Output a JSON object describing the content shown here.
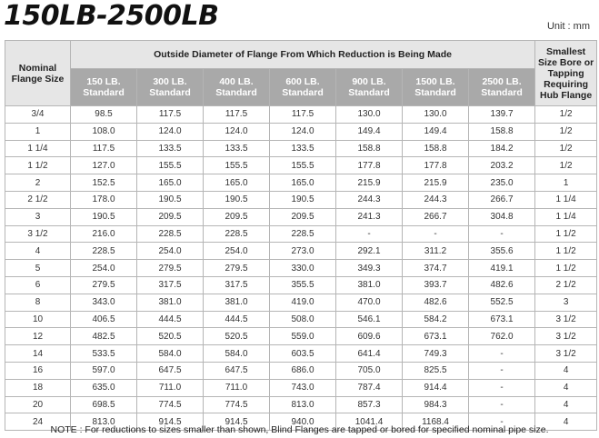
{
  "title": "150LB-2500LB",
  "unit": "Unit : mm",
  "headers": {
    "nominal": "Nominal Flange Size",
    "outside_diameter": "Outside Diameter of Flange From Which Reduction is Being Made",
    "smallest": "Smallest Size Bore or Tapping Requiring Hub Flange",
    "classes": [
      "150 LB. Standard",
      "300 LB. Standard",
      "400 LB. Standard",
      "600 LB. Standard",
      "900 LB. Standard",
      "1500 LB. Standard",
      "2500 LB. Standard"
    ]
  },
  "rows": [
    [
      "3/4",
      "98.5",
      "117.5",
      "117.5",
      "117.5",
      "130.0",
      "130.0",
      "139.7",
      "1/2"
    ],
    [
      "1",
      "108.0",
      "124.0",
      "124.0",
      "124.0",
      "149.4",
      "149.4",
      "158.8",
      "1/2"
    ],
    [
      "1 1/4",
      "117.5",
      "133.5",
      "133.5",
      "133.5",
      "158.8",
      "158.8",
      "184.2",
      "1/2"
    ],
    [
      "1 1/2",
      "127.0",
      "155.5",
      "155.5",
      "155.5",
      "177.8",
      "177.8",
      "203.2",
      "1/2"
    ],
    [
      "2",
      "152.5",
      "165.0",
      "165.0",
      "165.0",
      "215.9",
      "215.9",
      "235.0",
      "1"
    ],
    [
      "2 1/2",
      "178.0",
      "190.5",
      "190.5",
      "190.5",
      "244.3",
      "244.3",
      "266.7",
      "1 1/4"
    ],
    [
      "3",
      "190.5",
      "209.5",
      "209.5",
      "209.5",
      "241.3",
      "266.7",
      "304.8",
      "1 1/4"
    ],
    [
      "3 1/2",
      "216.0",
      "228.5",
      "228.5",
      "228.5",
      "-",
      "-",
      "-",
      "1 1/2"
    ],
    [
      "4",
      "228.5",
      "254.0",
      "254.0",
      "273.0",
      "292.1",
      "311.2",
      "355.6",
      "1 1/2"
    ],
    [
      "5",
      "254.0",
      "279.5",
      "279.5",
      "330.0",
      "349.3",
      "374.7",
      "419.1",
      "1 1/2"
    ],
    [
      "6",
      "279.5",
      "317.5",
      "317.5",
      "355.5",
      "381.0",
      "393.7",
      "482.6",
      "2 1/2"
    ],
    [
      "8",
      "343.0",
      "381.0",
      "381.0",
      "419.0",
      "470.0",
      "482.6",
      "552.5",
      "3"
    ],
    [
      "10",
      "406.5",
      "444.5",
      "444.5",
      "508.0",
      "546.1",
      "584.2",
      "673.1",
      "3 1/2"
    ],
    [
      "12",
      "482.5",
      "520.5",
      "520.5",
      "559.0",
      "609.6",
      "673.1",
      "762.0",
      "3 1/2"
    ],
    [
      "14",
      "533.5",
      "584.0",
      "584.0",
      "603.5",
      "641.4",
      "749.3",
      "-",
      "3 1/2"
    ],
    [
      "16",
      "597.0",
      "647.5",
      "647.5",
      "686.0",
      "705.0",
      "825.5",
      "-",
      "4"
    ],
    [
      "18",
      "635.0",
      "711.0",
      "711.0",
      "743.0",
      "787.4",
      "914.4",
      "-",
      "4"
    ],
    [
      "20",
      "698.5",
      "774.5",
      "774.5",
      "813.0",
      "857.3",
      "984.3",
      "-",
      "4"
    ],
    [
      "24",
      "813.0",
      "914.5",
      "914.5",
      "940.0",
      "1041.4",
      "1168.4",
      "-",
      "4"
    ]
  ],
  "note": "NOTE : For reductions to sizes smaller than shown, Blind Flanges are tapped or bored for specified  nominal pipe size."
}
